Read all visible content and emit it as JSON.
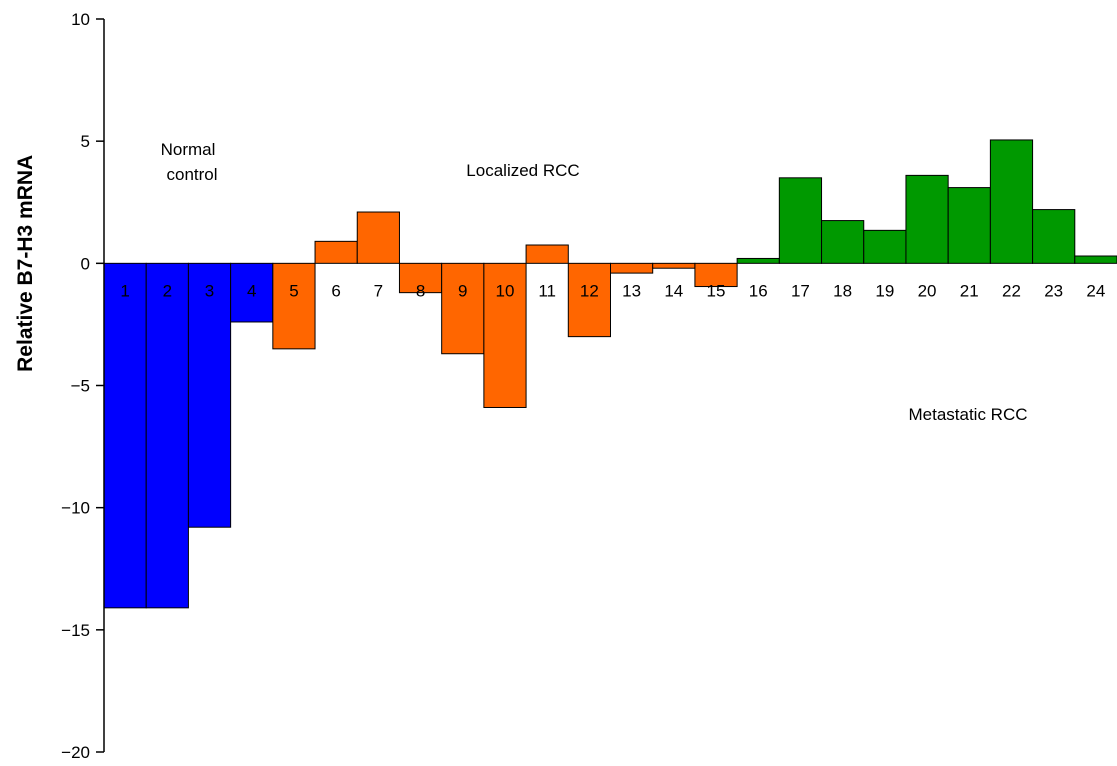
{
  "chart_data": {
    "type": "bar",
    "title": "",
    "xlabel": "",
    "ylabel": "Relative B7-H3 mRNA",
    "ylim": [
      -20,
      10
    ],
    "yticks": [
      10,
      5,
      0,
      -5,
      -10,
      -15,
      -20
    ],
    "ytick_labels": [
      "10",
      "5",
      "0",
      "−5",
      "−10",
      "−15",
      "−20"
    ],
    "grid": false,
    "categories": [
      "1",
      "2",
      "3",
      "4",
      "5",
      "6",
      "7",
      "8",
      "9",
      "10",
      "11",
      "12",
      "13",
      "14",
      "15",
      "16",
      "17",
      "18",
      "19",
      "20",
      "21",
      "22",
      "23",
      "24"
    ],
    "values": [
      -14.1,
      -14.1,
      -10.8,
      -2.4,
      -3.5,
      0.9,
      2.1,
      -1.2,
      -3.7,
      -5.9,
      0.75,
      -3.0,
      -0.4,
      -0.2,
      -0.95,
      0.2,
      3.5,
      1.75,
      1.35,
      3.6,
      3.1,
      5.05,
      2.2,
      0.3
    ],
    "groups": [
      {
        "label": "Normal control",
        "color": "#0000ff",
        "categories": [
          "1",
          "2",
          "3",
          "4"
        ]
      },
      {
        "label": "Localized RCC",
        "color": "#ff6600",
        "categories": [
          "5",
          "6",
          "7",
          "8",
          "9",
          "10",
          "11",
          "12",
          "13",
          "14",
          "15"
        ]
      },
      {
        "label": "Metastatic RCC",
        "color": "#009900",
        "categories": [
          "16",
          "17",
          "18",
          "19",
          "20",
          "21",
          "22",
          "23",
          "24"
        ]
      }
    ],
    "annotations": {
      "normal_line1": "Normal",
      "normal_line2": "control",
      "localized": "Localized RCC",
      "metastatic": "Metastatic RCC"
    }
  }
}
